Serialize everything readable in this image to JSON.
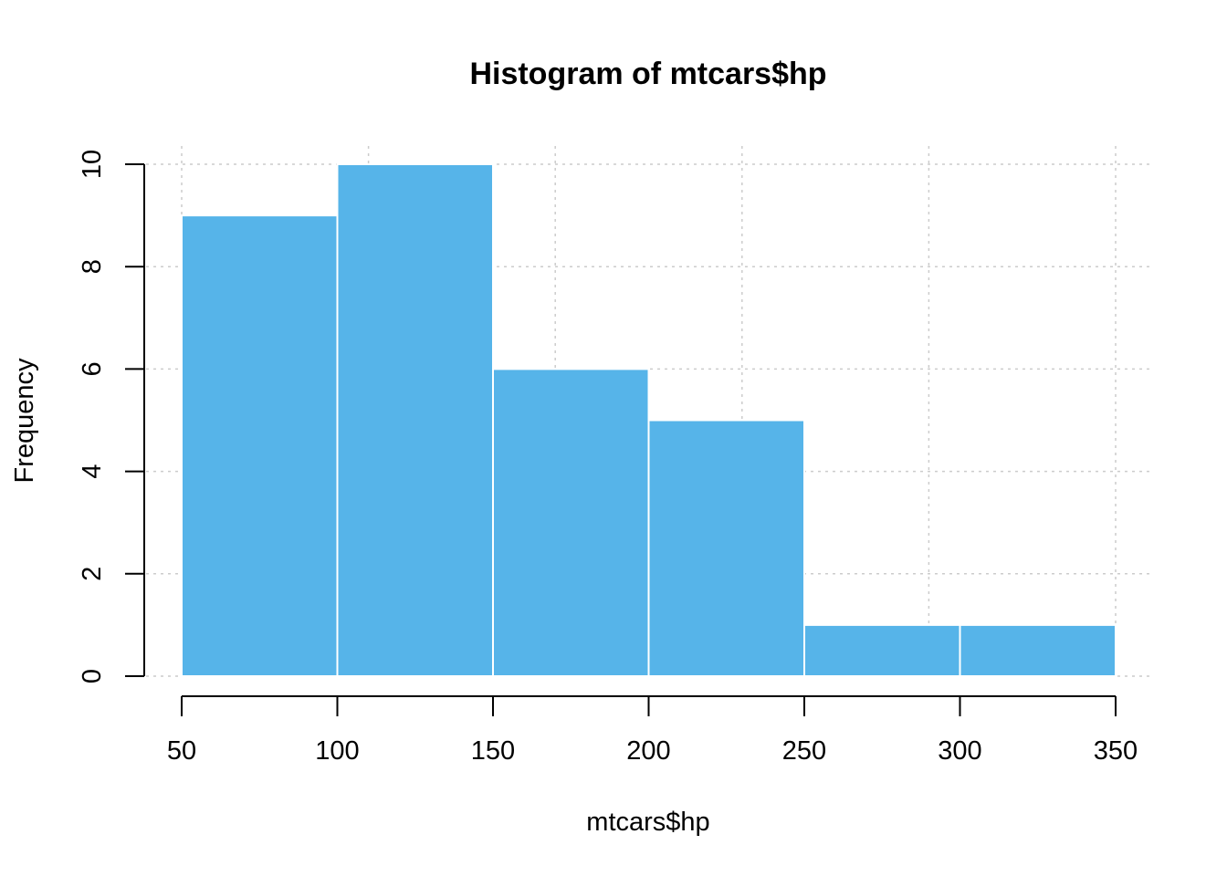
{
  "chart_data": {
    "type": "bar",
    "title": "Histogram of mtcars$hp",
    "xlabel": "mtcars$hp",
    "ylabel": "Frequency",
    "bins": [
      {
        "start": 50,
        "end": 100,
        "count": 9
      },
      {
        "start": 100,
        "end": 150,
        "count": 10
      },
      {
        "start": 150,
        "end": 200,
        "count": 6
      },
      {
        "start": 200,
        "end": 250,
        "count": 5
      },
      {
        "start": 250,
        "end": 300,
        "count": 1
      },
      {
        "start": 300,
        "end": 350,
        "count": 1
      }
    ],
    "xlim": [
      50,
      350
    ],
    "ylim": [
      0,
      10
    ],
    "x_ticks": [
      50,
      100,
      150,
      200,
      250,
      300,
      350
    ],
    "y_ticks": [
      0,
      2,
      4,
      6,
      8,
      10
    ],
    "grid": true,
    "bar_color": "#56B4E9",
    "bar_border_color": "#ffffff",
    "grid_color": "#cccccc"
  }
}
